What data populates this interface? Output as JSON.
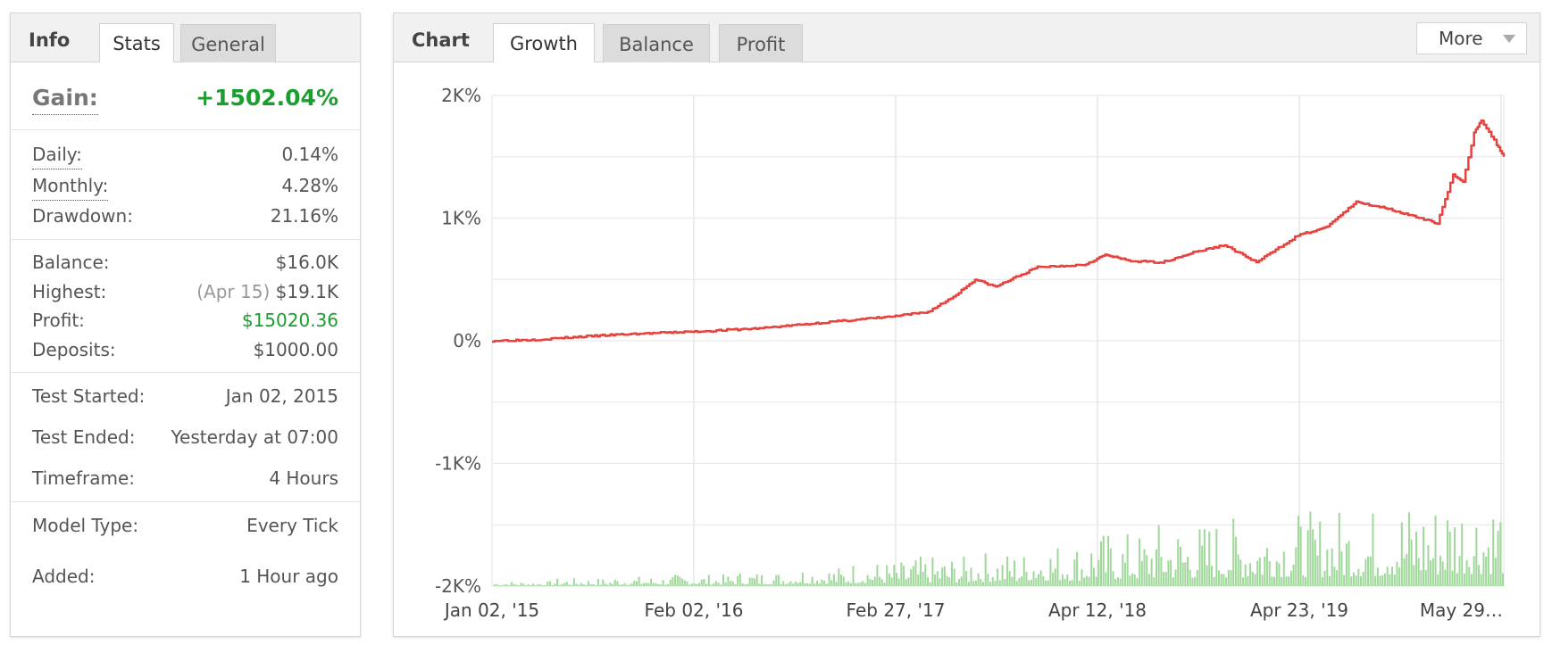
{
  "info": {
    "title": "Info",
    "tabs": [
      {
        "label": "Stats",
        "active": true
      },
      {
        "label": "General",
        "active": false
      }
    ],
    "gain": {
      "label": "Gain:",
      "value": "+1502.04%"
    },
    "daily": {
      "label": "Daily:",
      "value": "0.14%"
    },
    "monthly": {
      "label": "Monthly:",
      "value": "4.28%"
    },
    "drawdown": {
      "label": "Drawdown:",
      "value": "21.16%"
    },
    "balance": {
      "label": "Balance:",
      "value": "$16.0K"
    },
    "highest": {
      "label": "Highest:",
      "date": "(Apr 15)",
      "value": "$19.1K"
    },
    "profit": {
      "label": "Profit:",
      "value": "$15020.36"
    },
    "deposits": {
      "label": "Deposits:",
      "value": "$1000.00"
    },
    "test_started": {
      "label": "Test Started:",
      "value": "Jan 02, 2015"
    },
    "test_ended": {
      "label": "Test Ended:",
      "value": "Yesterday at 07:00"
    },
    "timeframe": {
      "label": "Timeframe:",
      "value": "4 Hours"
    },
    "model_type": {
      "label": "Model Type:",
      "value": "Every Tick"
    },
    "added": {
      "label": "Added:",
      "value": "1 Hour ago"
    }
  },
  "chart_panel": {
    "title": "Chart",
    "tabs": [
      {
        "label": "Growth",
        "active": true
      },
      {
        "label": "Balance",
        "active": false
      },
      {
        "label": "Profit",
        "active": false
      }
    ],
    "more_label": "More",
    "colors": {
      "line": "#e8423f",
      "bars": "#9fd89a",
      "grid": "#e6e6e6"
    }
  },
  "chart_data": {
    "type": "line",
    "title": "",
    "xlabel": "",
    "ylabel": "",
    "ylim": [
      -2000,
      2000
    ],
    "y_ticks": [
      {
        "value": 2000,
        "label": "2K%"
      },
      {
        "value": 1000,
        "label": "1K%"
      },
      {
        "value": 0,
        "label": "0%"
      },
      {
        "value": -1000,
        "label": "-1K%"
      },
      {
        "value": -2000,
        "label": "-2K%"
      }
    ],
    "x_tick_labels": [
      "Jan 02, '15",
      "Feb 02, '16",
      "Feb 27, '17",
      "Apr 12, '18",
      "Apr 23, '19",
      "May 29…"
    ],
    "grid": true,
    "series": [
      {
        "type": "line",
        "x": [
          "2015-01-02",
          "2015-04-01",
          "2015-07-01",
          "2015-10-01",
          "2016-02-02",
          "2016-06-01",
          "2016-10-01",
          "2017-02-27",
          "2017-05-01",
          "2017-06-20",
          "2017-08-01",
          "2017-09-10",
          "2017-10-20",
          "2017-12-01",
          "2018-01-15",
          "2018-03-01",
          "2018-04-12",
          "2018-06-01",
          "2018-08-01",
          "2018-10-01",
          "2018-12-01",
          "2019-02-01",
          "2019-04-23",
          "2019-06-15",
          "2019-08-15",
          "2019-10-15",
          "2019-12-15",
          "2020-01-20",
          "2020-02-20",
          "2020-03-10",
          "2020-04-01",
          "2020-04-15",
          "2020-05-15",
          "2020-05-29"
        ],
        "y": [
          0,
          10,
          35,
          55,
          75,
          100,
          145,
          200,
          235,
          360,
          500,
          440,
          520,
          600,
          610,
          620,
          700,
          650,
          640,
          720,
          780,
          640,
          860,
          920,
          1130,
          1080,
          1000,
          960,
          1350,
          1290,
          1700,
          1800,
          1600,
          1500
        ]
      },
      {
        "type": "bar",
        "description": "volume",
        "x_range": [
          "2015-01-02",
          "2020-05-29"
        ],
        "values_relative": [
          0.05,
          0.08,
          0.1,
          0.12,
          0.15,
          0.2,
          0.25,
          0.3,
          0.35,
          0.45,
          0.55,
          0.65,
          0.7,
          0.75,
          0.8,
          0.9,
          1.0
        ]
      }
    ]
  }
}
